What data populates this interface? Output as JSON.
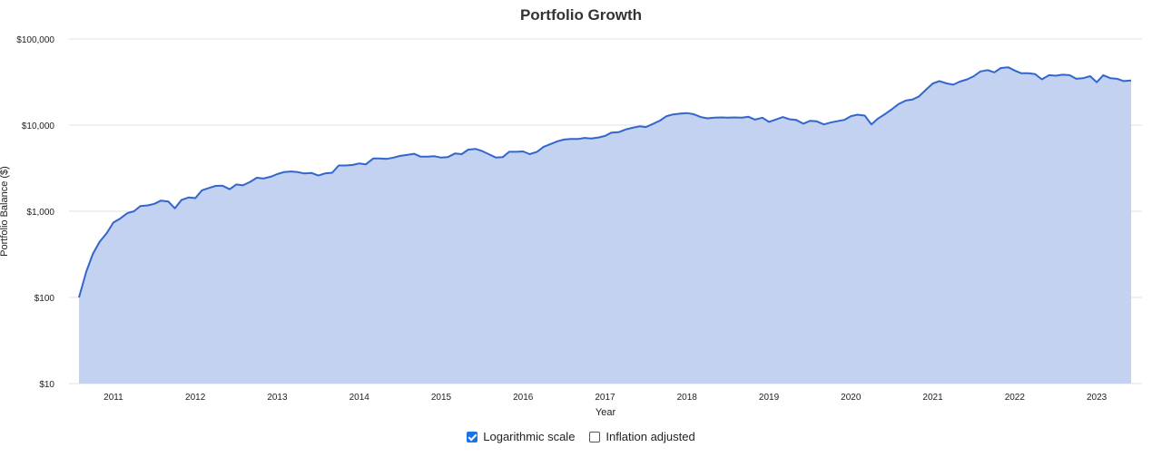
{
  "chart_data": {
    "type": "area",
    "title": "Portfolio Growth",
    "xlabel": "Year",
    "ylabel": "Portfolio Balance ($)",
    "log_scale": true,
    "grid": true,
    "line_color": "#3366cc",
    "fill_color": "#c2d2f0",
    "ylim": [
      10,
      100000
    ],
    "xlim": [
      2010.58,
      2023.42
    ],
    "y_ticks": [
      {
        "value": 100000,
        "label": "$100,000"
      },
      {
        "value": 10000,
        "label": "$10,000"
      },
      {
        "value": 1000,
        "label": "$1,000"
      },
      {
        "value": 100,
        "label": "$100"
      },
      {
        "value": 10,
        "label": "$10"
      }
    ],
    "x_ticks": [
      {
        "value": 2011,
        "label": "2011"
      },
      {
        "value": 2012,
        "label": "2012"
      },
      {
        "value": 2013,
        "label": "2013"
      },
      {
        "value": 2014,
        "label": "2014"
      },
      {
        "value": 2015,
        "label": "2015"
      },
      {
        "value": 2016,
        "label": "2016"
      },
      {
        "value": 2017,
        "label": "2017"
      },
      {
        "value": 2018,
        "label": "2018"
      },
      {
        "value": 2019,
        "label": "2019"
      },
      {
        "value": 2020,
        "label": "2020"
      },
      {
        "value": 2021,
        "label": "2021"
      },
      {
        "value": 2022,
        "label": "2022"
      },
      {
        "value": 2023,
        "label": "2023"
      }
    ],
    "series": [
      {
        "x": [
          2010.58,
          2010.67,
          2010.75,
          2010.83,
          2010.92,
          2011.0,
          2011.08,
          2011.17,
          2011.25,
          2011.33,
          2011.42,
          2011.5,
          2011.58,
          2011.67,
          2011.75,
          2011.83,
          2011.92,
          2012.0,
          2012.08,
          2012.17,
          2012.25,
          2012.33,
          2012.42,
          2012.5,
          2012.58,
          2012.67,
          2012.75,
          2012.83,
          2012.92,
          2013.0,
          2013.08,
          2013.17,
          2013.25,
          2013.33,
          2013.42,
          2013.5,
          2013.58,
          2013.67,
          2013.75,
          2013.83,
          2013.92,
          2014.0,
          2014.08,
          2014.17,
          2014.25,
          2014.33,
          2014.42,
          2014.5,
          2014.58,
          2014.67,
          2014.75,
          2014.83,
          2014.92,
          2015.0,
          2015.08,
          2015.17,
          2015.25,
          2015.33,
          2015.42,
          2015.5,
          2015.58,
          2015.67,
          2015.75,
          2015.83,
          2015.92,
          2016.0,
          2016.08,
          2016.17,
          2016.25,
          2016.33,
          2016.42,
          2016.5,
          2016.58,
          2016.67,
          2016.75,
          2016.83,
          2016.92,
          2017.0,
          2017.08,
          2017.17,
          2017.25,
          2017.33,
          2017.42,
          2017.5,
          2017.58,
          2017.67,
          2017.75,
          2017.83,
          2017.92,
          2018.0,
          2018.08,
          2018.17,
          2018.25,
          2018.33,
          2018.42,
          2018.5,
          2018.58,
          2018.67,
          2018.75,
          2018.83,
          2018.92,
          2019.0,
          2019.08,
          2019.17,
          2019.25,
          2019.33,
          2019.42,
          2019.5,
          2019.58,
          2019.67,
          2019.75,
          2019.83,
          2019.92,
          2020.0,
          2020.08,
          2020.17,
          2020.25,
          2020.33,
          2020.42,
          2020.5,
          2020.58,
          2020.67,
          2020.75,
          2020.83,
          2020.92,
          2021.0,
          2021.08,
          2021.17,
          2021.25,
          2021.33,
          2021.42,
          2021.5,
          2021.58,
          2021.67,
          2021.75,
          2021.83,
          2021.92,
          2022.0,
          2022.08,
          2022.17,
          2022.25,
          2022.33,
          2022.42,
          2022.5,
          2022.58,
          2022.67,
          2022.75,
          2022.83,
          2022.92,
          2023.0,
          2023.08,
          2023.17,
          2023.25,
          2023.33,
          2023.42
        ],
        "y": [
          100,
          200,
          320,
          440,
          560,
          740,
          820,
          950,
          1000,
          1150,
          1170,
          1220,
          1330,
          1300,
          1080,
          1350,
          1450,
          1420,
          1750,
          1870,
          1970,
          1980,
          1800,
          2050,
          2000,
          2200,
          2450,
          2400,
          2520,
          2700,
          2850,
          2900,
          2850,
          2750,
          2780,
          2600,
          2750,
          2800,
          3400,
          3400,
          3450,
          3600,
          3500,
          4100,
          4100,
          4050,
          4200,
          4400,
          4500,
          4650,
          4300,
          4300,
          4350,
          4200,
          4250,
          4700,
          4600,
          5200,
          5300,
          5000,
          4600,
          4200,
          4250,
          4900,
          4900,
          4950,
          4600,
          4900,
          5600,
          6000,
          6500,
          6800,
          6900,
          6900,
          7100,
          7000,
          7200,
          7500,
          8200,
          8300,
          8900,
          9300,
          9700,
          9500,
          10300,
          11300,
          12700,
          13300,
          13600,
          13800,
          13400,
          12400,
          12000,
          12200,
          12300,
          12200,
          12300,
          12200,
          12500,
          11600,
          12200,
          10900,
          11600,
          12400,
          11700,
          11500,
          10400,
          11200,
          11100,
          10200,
          10700,
          11100,
          11500,
          12700,
          13200,
          12900,
          10200,
          11900,
          13500,
          15300,
          17500,
          19300,
          19800,
          21500,
          26000,
          30500,
          32500,
          30500,
          29500,
          32000,
          34000,
          37000,
          42000,
          43500,
          41000,
          46000,
          47000,
          43000,
          40000,
          40000,
          39000,
          34000,
          38000,
          37500,
          38500,
          38000,
          34500,
          35000,
          37000,
          31500,
          38000,
          35000,
          34500,
          32500,
          33000
        ]
      }
    ]
  },
  "controls": {
    "log_scale_label": "Logarithmic scale",
    "log_scale_checked": true,
    "inflation_label": "Inflation adjusted",
    "inflation_checked": false
  }
}
